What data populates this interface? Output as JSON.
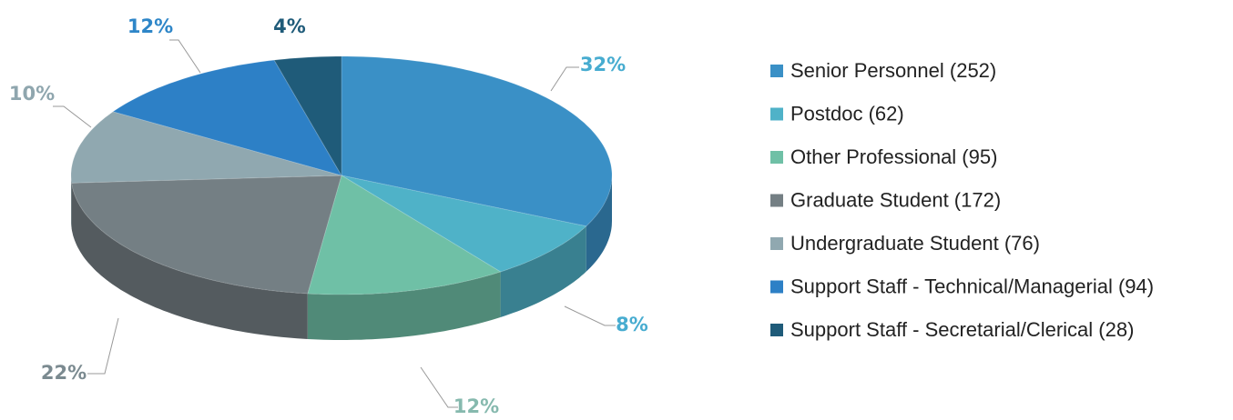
{
  "chart_data": {
    "type": "pie",
    "categories": [
      "Senior Personnel (252)",
      "Postdoc (62)",
      "Other Professional (95)",
      "Graduate Student (172)",
      "Undergraduate Student (76)",
      "Support Staff - Technical/Managerial (94)",
      "Support Staff - Secretarial/Clerical (28)"
    ],
    "values": [
      32,
      8,
      12,
      22,
      10,
      12,
      4
    ],
    "value_labels": [
      "32%",
      "8%",
      "12%",
      "22%",
      "10%",
      "12%",
      "4%"
    ],
    "colors": [
      "#3a90c6",
      "#4fb2c8",
      "#6fc0a6",
      "#747f84",
      "#90a8b0",
      "#2d80c6",
      "#1f5b79"
    ],
    "legend": "right"
  }
}
